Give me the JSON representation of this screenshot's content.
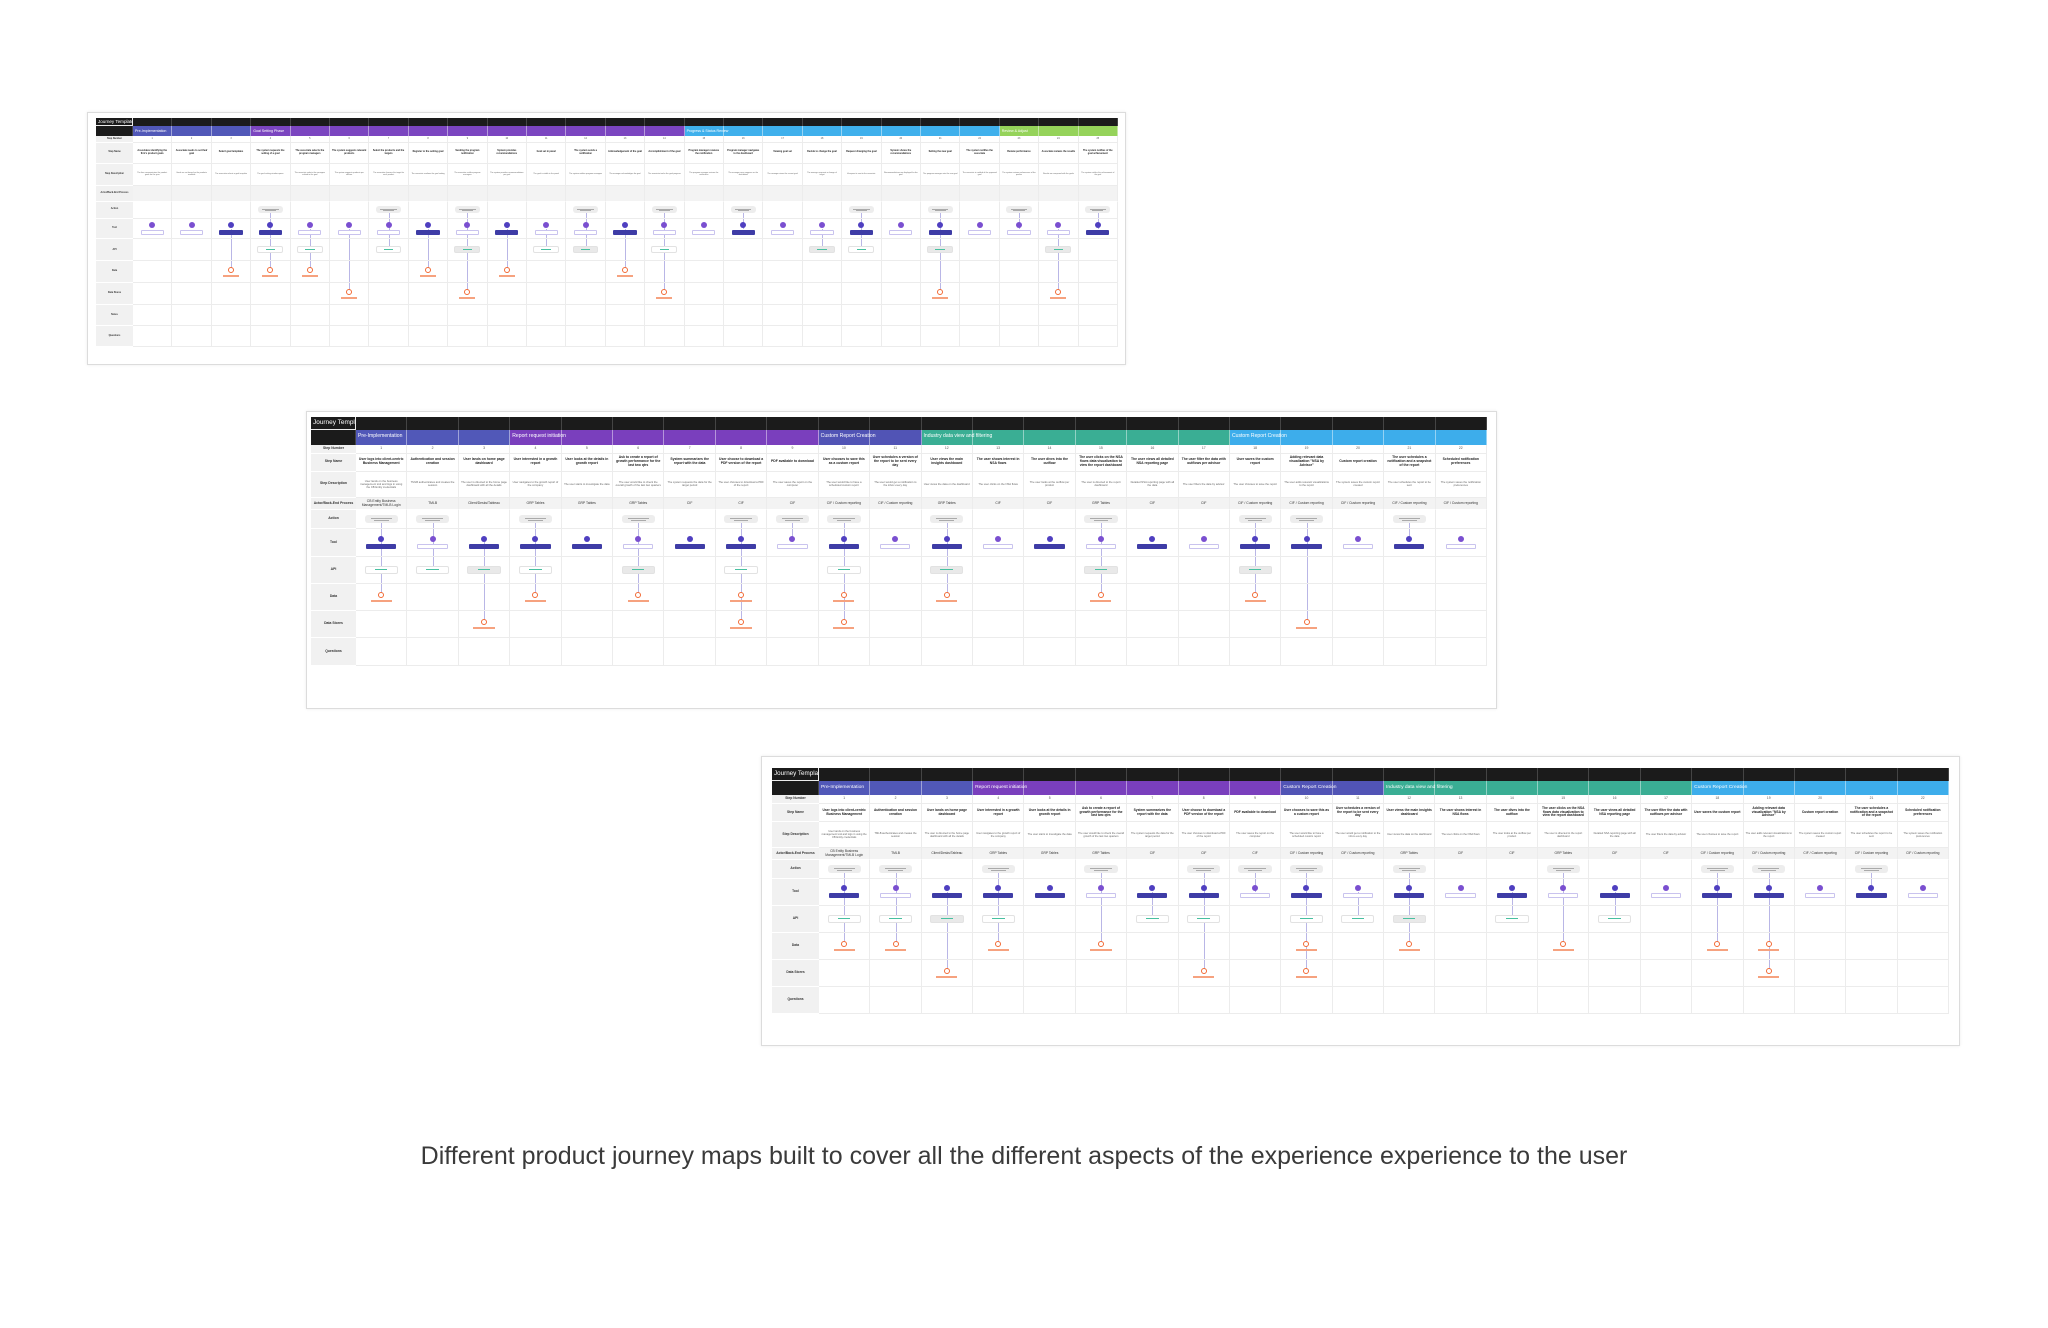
{
  "caption": "Different product journey maps built to cover all the different aspects of the experience experience to the user",
  "boards": [
    {
      "title": "Journey Template",
      "row_labels": [
        "Step Number",
        "Step Name",
        "Step Description",
        "Actor/Back-End Process"
      ],
      "phases": [
        {
          "name": "Pre-Implementation",
          "steps": 3,
          "color": "#5158b8"
        },
        {
          "name": "Goal Setting Phase",
          "steps": 11,
          "color": "#7b45c0"
        },
        {
          "name": "Progress & Status Review",
          "steps": 8,
          "color": "#3fb0ec"
        },
        {
          "name": "Review & Adjust",
          "steps": 3,
          "color": "#95d35a"
        }
      ],
      "steps": [
        {
          "n": "1",
          "name": "Associates identifying the firm's product goals",
          "desc": "The firm communicates the product goals for the year"
        },
        {
          "n": "2",
          "name": "Associate needs to set their goal",
          "desc": "Goals are set based on the products available"
        },
        {
          "n": "3",
          "name": "Select goal templates",
          "desc": "The associate selects a goal template"
        },
        {
          "n": "4",
          "name": "The system requests the setting of a goal",
          "desc": "The goal setting window opens"
        },
        {
          "n": "5",
          "name": "The associate selects the program managers",
          "desc": "The associate selects the managers related to the goal"
        },
        {
          "n": "6",
          "name": "The system suggests relevant products",
          "desc": "The system suggests products per advisor"
        },
        {
          "n": "7",
          "name": "Select the products and the targets",
          "desc": "The associate chooses the target for each product"
        },
        {
          "n": "8",
          "name": "Register to the setting goal",
          "desc": "The associate confirms the goal setting"
        },
        {
          "n": "9",
          "name": "Sending the program notification",
          "desc": "The associate notifies program managers"
        },
        {
          "n": "10",
          "name": "System provides recommendations",
          "desc": "The system provides recommendations per goal"
        },
        {
          "n": "11",
          "name": "Goal set in panel",
          "desc": "The goal is visible in the panel"
        },
        {
          "n": "12",
          "name": "The system sends a notification",
          "desc": "The system notifies program managers"
        },
        {
          "n": "13",
          "name": "Acknowledgement of the goal",
          "desc": "The manager acknowledges the goal"
        },
        {
          "n": "14",
          "name": "Accomplishment of the goal",
          "desc": "The associate tracks the goal progress"
        },
        {
          "n": "15",
          "name": "Program manager receives the notification",
          "desc": "The program manager reviews the notification"
        },
        {
          "n": "16",
          "name": "Program manager navigates to the dashboard",
          "desc": "The manager sees progress on the dashboard"
        },
        {
          "n": "17",
          "name": "Viewing goal set",
          "desc": "The manager views the current goal"
        },
        {
          "n": "18",
          "name": "Decide to change the goal",
          "desc": "The manager requests a change of target"
        },
        {
          "n": "19",
          "name": "Request changing the goal",
          "desc": "A request is sent to the associate"
        },
        {
          "n": "20",
          "name": "System shows the recommendations",
          "desc": "Recommendations are displayed for the goal"
        },
        {
          "n": "21",
          "name": "Setting the new goal",
          "desc": "The program manager sets the new goal"
        },
        {
          "n": "22",
          "name": "The system notifies the associate",
          "desc": "The associate is notified of the approved goal"
        },
        {
          "n": "23",
          "name": "Review performance",
          "desc": "The system reviews performance of the quarter"
        },
        {
          "n": "24",
          "name": "Associate reviews the results",
          "desc": "Results are compared with the goals"
        },
        {
          "n": "25",
          "name": "The system notifies of the goal achievement",
          "desc": "The system notifies the achievement of the goal"
        }
      ],
      "lanes": [
        {
          "label": "Action",
          "type": "action",
          "steps": [
            4,
            7,
            9,
            12,
            14,
            16,
            19,
            21,
            23,
            25
          ]
        },
        {
          "label": "Tool",
          "type": "tool",
          "steps": [
            1,
            2,
            3,
            4,
            5,
            6,
            7,
            8,
            9,
            10,
            11,
            12,
            13,
            14,
            15,
            16,
            17,
            18,
            19,
            20,
            21,
            22,
            23,
            24,
            25
          ],
          "filled": [
            3,
            4,
            8,
            10,
            13,
            16,
            19,
            21,
            25
          ]
        },
        {
          "label": "API",
          "type": "api",
          "steps": [
            4,
            5,
            7,
            9,
            11,
            12,
            14,
            18,
            19,
            21,
            24
          ]
        },
        {
          "label": "Data",
          "type": "data",
          "steps": [
            3,
            4,
            5,
            8,
            10,
            13
          ]
        },
        {
          "label": "Data Stores",
          "type": "store",
          "steps": [
            6,
            9,
            14,
            21,
            24
          ]
        },
        {
          "label": "Notes",
          "type": "none",
          "steps": []
        },
        {
          "label": "Questions",
          "type": "none",
          "steps": []
        }
      ]
    },
    {
      "title": "Journey Template",
      "row_labels": [
        "Step Number",
        "Step Name",
        "Step Description",
        "Actor/Back-End Process"
      ],
      "phases": [
        {
          "name": "Pre-Implementation",
          "steps": 3,
          "color": "#5158b8"
        },
        {
          "name": "Report request initiation",
          "steps": 6,
          "color": "#7a3fbd"
        },
        {
          "name": "Custom Report Creation",
          "steps": 2,
          "color": "#5154b5"
        },
        {
          "name": "Industry data view and filtering",
          "steps": 6,
          "color": "#3aae94"
        },
        {
          "name": "Custom Report Creation",
          "steps": 5,
          "color": "#3dadeb"
        }
      ],
      "steps": [
        {
          "n": "1",
          "name": "User logs into client-centric Business Management",
          "desc": "User lands on the business management tool and logs in using the CB Entity credentials",
          "actor": "CB Entity Business Management/TMLB Login"
        },
        {
          "n": "2",
          "name": "Authentication and session creation",
          "desc": "TMLB authenticates and creates the session",
          "actor": "TMLB"
        },
        {
          "n": "3",
          "name": "User lands on home page dashboard",
          "desc": "The user is directed to the home page dashboard with all the details",
          "actor": "Client/Desks/Tableau"
        },
        {
          "n": "4",
          "name": "User interested in a growth report",
          "desc": "User navigates to the growth report of the company",
          "actor": "GRP Tables"
        },
        {
          "n": "5",
          "name": "User looks at the details in growth report",
          "desc": "The user starts to investigate the data",
          "actor": "GRP Tables"
        },
        {
          "n": "6",
          "name": "Ask to create a report of growth performance for the last two qtrs",
          "desc": "The user would like to check the overall growth of the last two quarters",
          "actor": "GRP Tables"
        },
        {
          "n": "7",
          "name": "System summarizes the report with the data",
          "desc": "The system requests the data for the target period",
          "actor": "CIF"
        },
        {
          "n": "8",
          "name": "User choose to download a PDF version of the report",
          "desc": "The user chooses to download a PDF of the report",
          "actor": "CIF"
        },
        {
          "n": "9",
          "name": "PDF available to download",
          "desc": "The user saves the report on the computer",
          "actor": "CIF"
        },
        {
          "n": "10",
          "name": "User chooses to save this as a custom report",
          "desc": "The user would like to have a scheduled custom report",
          "actor": "CIF / Custom reporting"
        },
        {
          "n": "11",
          "name": "User schedules a version of the report to be sent every day",
          "desc": "The user would get a notification to the inbox every day",
          "actor": "CIF / Custom reporting"
        },
        {
          "n": "12",
          "name": "User views the main insights dashboard",
          "desc": "User views the data on the dashboard",
          "actor": "GRP Tables"
        },
        {
          "n": "13",
          "name": "The user shows interest in NSA flows",
          "desc": "The user clicks on the NSA flows",
          "actor": "CIF"
        },
        {
          "n": "14",
          "name": "The user dives into the outflow",
          "desc": "The user looks at the outflow per product",
          "actor": "CIF"
        },
        {
          "n": "15",
          "name": "The user clicks on the NSA flows data visualization to view the report dashboard",
          "desc": "The user is directed to the report dashboard",
          "actor": "GRP Tables"
        },
        {
          "n": "16",
          "name": "The user views all detailed NSA reporting page",
          "desc": "Detailed NSA reporting page with all the data",
          "actor": "CIF"
        },
        {
          "n": "17",
          "name": "The user filter the data with outflows per advisor",
          "desc": "The user filters the data by advisor",
          "actor": "CIF"
        },
        {
          "n": "18",
          "name": "User saves the custom report",
          "desc": "The user chooses to save the report",
          "actor": "CIF / Custom reporting"
        },
        {
          "n": "19",
          "name": "Adding relevant data visualization \"NSA by Advisor\"",
          "desc": "The user adds relevant visualizations to the report",
          "actor": "CIF / Custom reporting"
        },
        {
          "n": "20",
          "name": "Custom report creation",
          "desc": "The system saves the custom report created",
          "actor": "CIF / Custom reporting"
        },
        {
          "n": "21",
          "name": "The user schedules a notification and a snapshot of the report",
          "desc": "The user schedules the report to be sent",
          "actor": "CIF / Custom reporting"
        },
        {
          "n": "22",
          "name": "Scheduled notification preferences",
          "desc": "The system saves the notification preferences",
          "actor": "CIF / Custom reporting"
        }
      ],
      "lanes": [
        {
          "label": "Action",
          "type": "action",
          "steps": [
            1,
            2,
            4,
            6,
            8,
            9,
            10,
            12,
            15,
            18,
            19,
            21
          ]
        },
        {
          "label": "Tool",
          "type": "tool",
          "steps": [
            1,
            2,
            3,
            4,
            5,
            6,
            7,
            8,
            9,
            10,
            11,
            12,
            13,
            14,
            15,
            16,
            17,
            18,
            19,
            20,
            21,
            22
          ],
          "filled": [
            1,
            3,
            4,
            5,
            7,
            8,
            10,
            12,
            14,
            16,
            18,
            19,
            21
          ]
        },
        {
          "label": "API",
          "type": "api",
          "steps": [
            1,
            2,
            3,
            4,
            6,
            8,
            10,
            12,
            15,
            18
          ]
        },
        {
          "label": "Data",
          "type": "data",
          "steps": [
            1,
            4,
            6,
            8,
            10,
            12,
            15,
            18
          ]
        },
        {
          "label": "Data Stores",
          "type": "store",
          "steps": [
            3,
            8,
            10,
            19
          ]
        },
        {
          "label": "Questions",
          "type": "none",
          "steps": []
        }
      ]
    },
    {
      "title": "Journey Template",
      "steps_from": 1,
      "row_labels": [
        "Step Number",
        "Step Name",
        "Step Description",
        "Actor/Back-End Process"
      ],
      "phases": [
        {
          "name": "Pre-Implementation",
          "steps": 3,
          "color": "#5158b8"
        },
        {
          "name": "Report request initiation",
          "steps": 6,
          "color": "#7a3fbd"
        },
        {
          "name": "Custom Report Creation",
          "steps": 2,
          "color": "#5154b5"
        },
        {
          "name": "Industry data view and filtering",
          "steps": 6,
          "color": "#3aae94"
        },
        {
          "name": "Custom Report Creation",
          "steps": 5,
          "color": "#3dadeb"
        }
      ],
      "lanes": [
        {
          "label": "Action",
          "type": "action",
          "steps": [
            1,
            2,
            4,
            6,
            8,
            9,
            10,
            12,
            15,
            18,
            19,
            21
          ]
        },
        {
          "label": "Tool",
          "type": "tool",
          "steps": [
            1,
            2,
            3,
            4,
            5,
            6,
            7,
            8,
            9,
            10,
            11,
            12,
            13,
            14,
            15,
            16,
            17,
            18,
            19,
            20,
            21,
            22
          ],
          "filled": [
            1,
            3,
            4,
            5,
            7,
            8,
            10,
            12,
            14,
            16,
            18,
            19,
            21
          ]
        },
        {
          "label": "API",
          "type": "api",
          "steps": [
            1,
            2,
            3,
            4,
            7,
            8,
            10,
            11,
            12,
            14,
            16
          ]
        },
        {
          "label": "Data",
          "type": "data",
          "steps": [
            1,
            2,
            4,
            6,
            10,
            12,
            15,
            18,
            19
          ]
        },
        {
          "label": "Data Stores",
          "type": "store",
          "steps": [
            3,
            8,
            10,
            19
          ]
        },
        {
          "label": "Questions",
          "type": "none",
          "steps": []
        }
      ]
    }
  ]
}
